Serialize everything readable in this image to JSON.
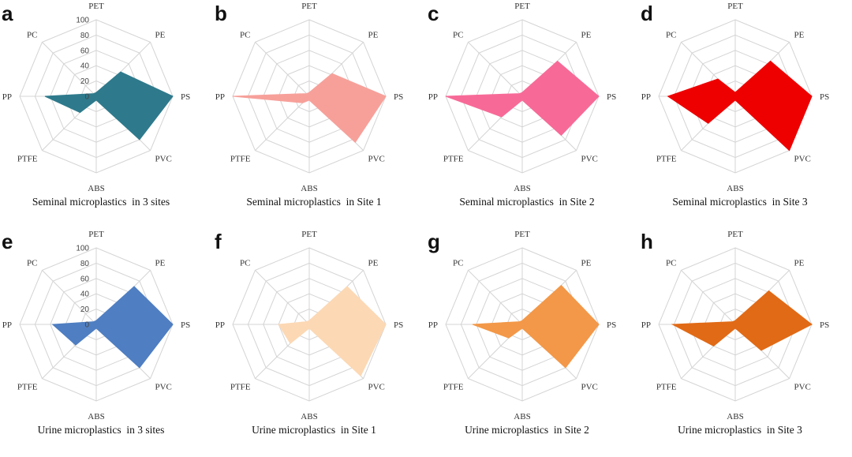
{
  "chart_data": [
    {
      "type": "radar",
      "letter": "a",
      "title": "Seminal microplastics  in 3 sites",
      "axes": [
        "PET",
        "PE",
        "PS",
        "PVC",
        "ABS",
        "PTFE",
        "PP",
        "PC"
      ],
      "rmax": 100,
      "ticks": [
        "0",
        "20",
        "40",
        "60",
        "80",
        "100"
      ],
      "show_ticks": true,
      "color": "#2e7a8c",
      "values": [
        5,
        45,
        100,
        80,
        5,
        30,
        67,
        5
      ]
    },
    {
      "type": "radar",
      "letter": "b",
      "title": "Seminal microplastics  in Site 1",
      "axes": [
        "PET",
        "PE",
        "PS",
        "PVC",
        "ABS",
        "PTFE",
        "PP",
        "PC"
      ],
      "rmax": 100,
      "ticks": [],
      "show_ticks": false,
      "color": "#f7a09a",
      "values": [
        5,
        42,
        100,
        85,
        5,
        12,
        100,
        5
      ]
    },
    {
      "type": "radar",
      "letter": "c",
      "title": "Seminal microplastics  in Site 2",
      "axes": [
        "PET",
        "PE",
        "PS",
        "PVC",
        "ABS",
        "PTFE",
        "PP",
        "PC"
      ],
      "rmax": 100,
      "ticks": [],
      "show_ticks": false,
      "color": "#f76a98",
      "values": [
        5,
        65,
        100,
        72,
        5,
        38,
        100,
        5
      ]
    },
    {
      "type": "radar",
      "letter": "d",
      "title": "Seminal microplastics  in Site 3",
      "axes": [
        "PET",
        "PE",
        "PS",
        "PVC",
        "ABS",
        "PTFE",
        "PP",
        "PC"
      ],
      "rmax": 100,
      "ticks": [],
      "show_ticks": false,
      "color": "#ee0000",
      "values": [
        5,
        65,
        100,
        100,
        5,
        50,
        88,
        32
      ]
    },
    {
      "type": "radar",
      "letter": "e",
      "title": "Urine microplastics  in 3 sites",
      "axes": [
        "PET",
        "PE",
        "PS",
        "PVC",
        "ABS",
        "PTFE",
        "PP",
        "PC"
      ],
      "rmax": 100,
      "ticks": [
        "0",
        "20",
        "40",
        "60",
        "80",
        "100"
      ],
      "show_ticks": true,
      "color": "#4f7ec2",
      "values": [
        5,
        70,
        100,
        80,
        5,
        38,
        57,
        5
      ]
    },
    {
      "type": "radar",
      "letter": "f",
      "title": "Urine microplastics  in Site 1",
      "axes": [
        "PET",
        "PE",
        "PS",
        "PVC",
        "ABS",
        "PTFE",
        "PP",
        "PC"
      ],
      "rmax": 100,
      "ticks": [],
      "show_ticks": false,
      "color": "#fcd8b4",
      "values": [
        5,
        70,
        100,
        95,
        5,
        35,
        40,
        5
      ]
    },
    {
      "type": "radar",
      "letter": "g",
      "title": "Urine microplastics  in Site 2",
      "axes": [
        "PET",
        "PE",
        "PS",
        "PVC",
        "ABS",
        "PTFE",
        "PP",
        "PC"
      ],
      "rmax": 100,
      "ticks": [],
      "show_ticks": false,
      "color": "#f39848",
      "values": [
        5,
        72,
        100,
        80,
        5,
        25,
        65,
        5
      ]
    },
    {
      "type": "radar",
      "letter": "h",
      "title": "Urine microplastics  in Site 3",
      "axes": [
        "PET",
        "PE",
        "PS",
        "PVC",
        "ABS",
        "PTFE",
        "PP",
        "PC"
      ],
      "rmax": 100,
      "ticks": [],
      "show_ticks": false,
      "color": "#e16a16",
      "values": [
        5,
        62,
        100,
        48,
        5,
        40,
        82,
        5
      ]
    }
  ]
}
